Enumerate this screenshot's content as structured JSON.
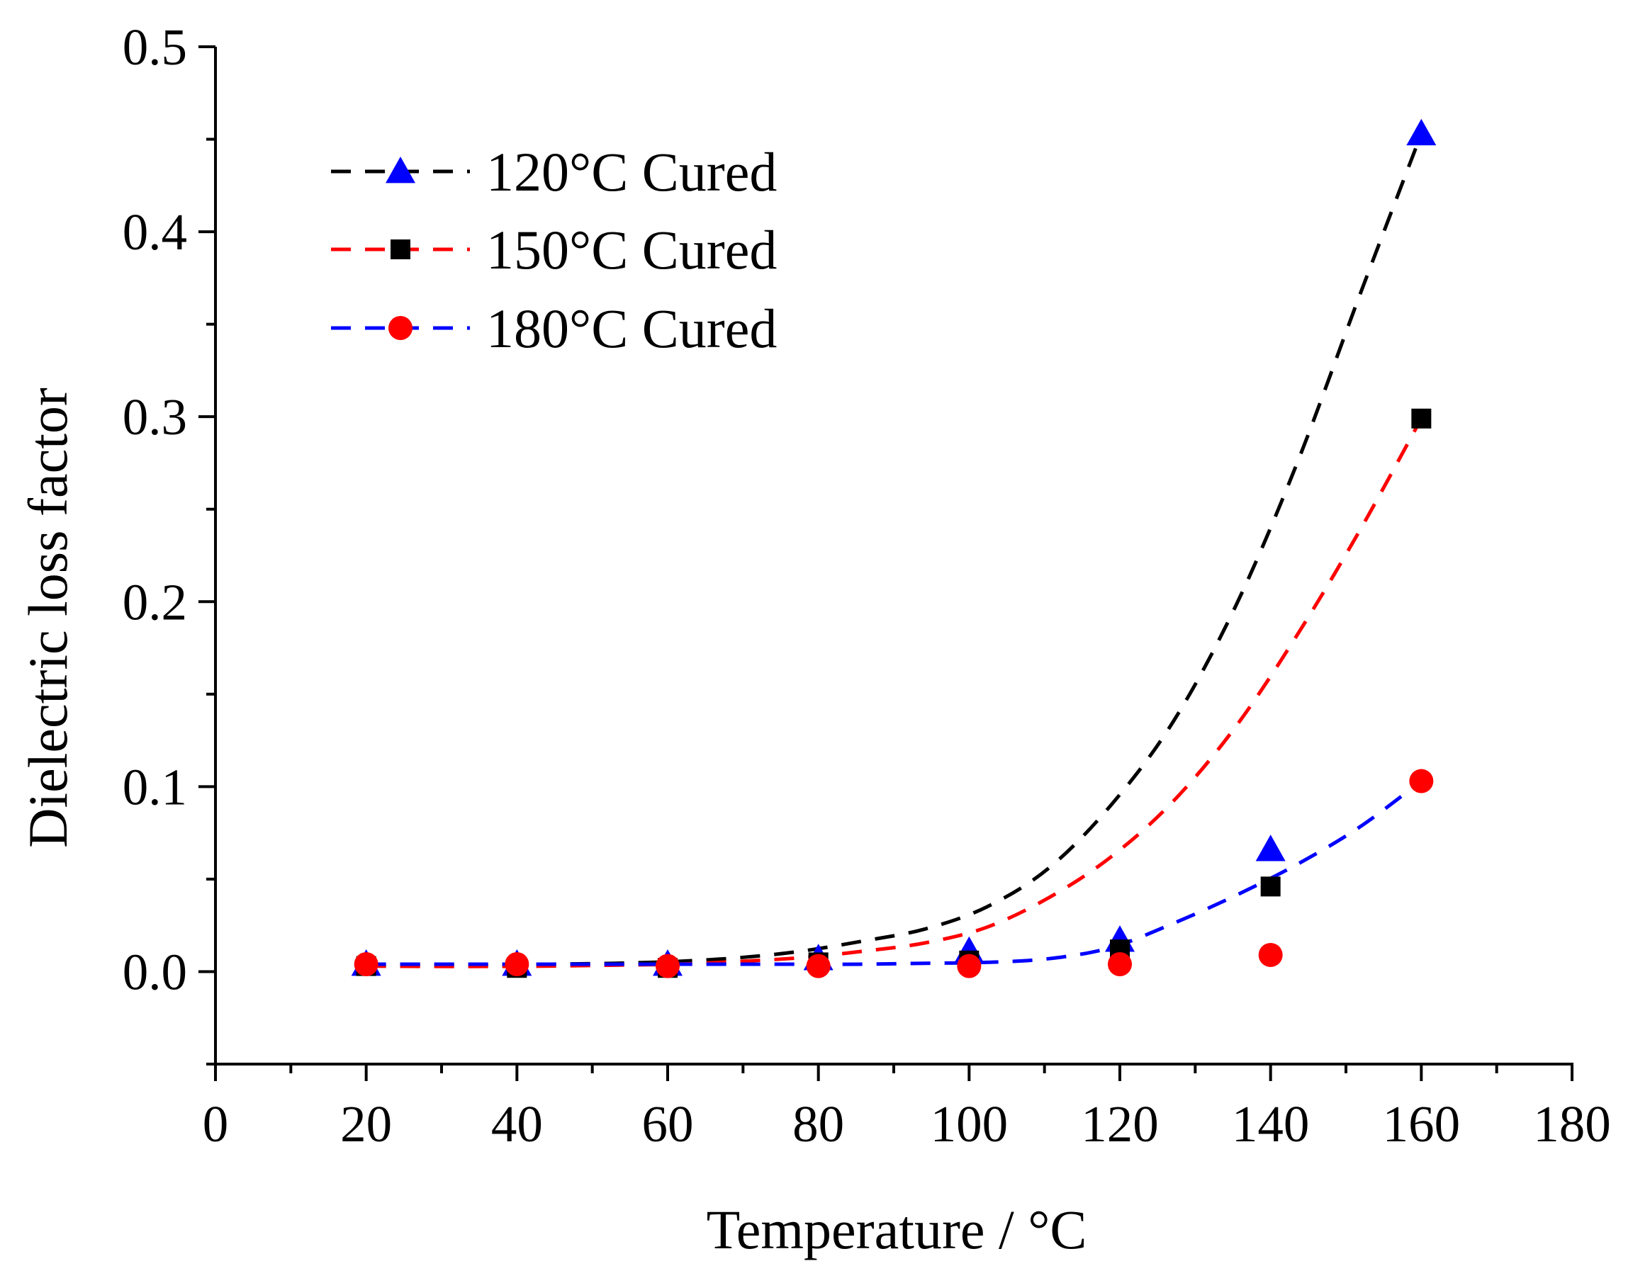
{
  "chart_data": {
    "type": "scatter",
    "xlabel": "Temperature / °C",
    "ylabel": "Dielectric loss factor",
    "xlim": [
      0,
      180
    ],
    "ylim": [
      -0.05,
      0.5
    ],
    "x_ticks": [
      0,
      20,
      40,
      60,
      80,
      100,
      120,
      140,
      160,
      180
    ],
    "x_tick_labels": [
      "0",
      "20",
      "40",
      "60",
      "80",
      "100",
      "120",
      "140",
      "160",
      "180"
    ],
    "y_ticks": [
      0.0,
      0.1,
      0.2,
      0.3,
      0.4,
      0.5
    ],
    "y_tick_labels": [
      "0.0",
      "0.1",
      "0.2",
      "0.3",
      "0.4",
      "0.5"
    ],
    "grid": false,
    "legend_position": "top-left",
    "series": [
      {
        "name": "120°C Cured",
        "marker": "triangle",
        "marker_color": "#0000ff",
        "line_color": "#000000",
        "x": [
          20,
          40,
          60,
          80,
          100,
          120,
          140,
          160
        ],
        "y": [
          0.004,
          0.004,
          0.004,
          0.007,
          0.011,
          0.017,
          0.066,
          0.453
        ],
        "fit": [
          0.0035,
          0.0035,
          0.0035,
          0.004,
          0.0045,
          0.0055,
          0.0075,
          0.011,
          0.0165,
          0.023,
          0.035,
          0.056,
          0.09,
          0.135,
          0.197,
          0.275,
          0.365,
          0.453
        ]
      },
      {
        "name": "150°C Cured",
        "marker": "square",
        "marker_color": "#000000",
        "line_color": "#ff0000",
        "x": [
          20,
          40,
          60,
          80,
          100,
          120,
          140,
          160
        ],
        "y": [
          0.003,
          0.002,
          0.002,
          0.005,
          0.006,
          0.012,
          0.046,
          0.299
        ],
        "fit": [
          0.003,
          0.0028,
          0.0028,
          0.003,
          0.0035,
          0.004,
          0.0055,
          0.0075,
          0.011,
          0.0155,
          0.024,
          0.04,
          0.062,
          0.092,
          0.132,
          0.182,
          0.238,
          0.299
        ]
      },
      {
        "name": "180°C Cured",
        "marker": "circle",
        "marker_color": "#ff0000",
        "line_color": "#0000ff",
        "x": [
          20,
          40,
          60,
          80,
          100,
          120,
          140,
          160
        ],
        "y": [
          0.004,
          0.004,
          0.003,
          0.003,
          0.003,
          0.004,
          0.009,
          0.103
        ],
        "fit": [
          0.004,
          0.004,
          0.004,
          0.004,
          0.004,
          0.004,
          0.004,
          0.004,
          0.004,
          0.0045,
          0.005,
          0.007,
          0.013,
          0.026,
          0.041,
          0.058,
          0.078,
          0.103
        ]
      }
    ]
  }
}
